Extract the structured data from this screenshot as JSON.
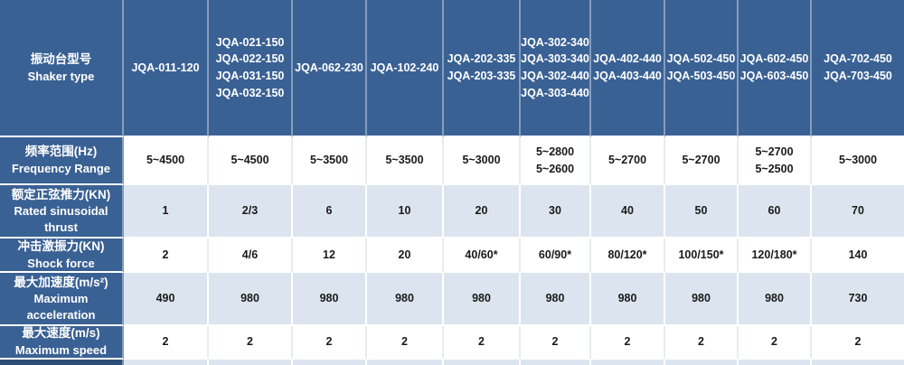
{
  "colors": {
    "header_blue": "#3a6194",
    "dark_blue_sliver": "#2e4e78",
    "light_row_blue": "#dce5ef",
    "white_row": "#ffffff",
    "header_text": "#ffffff",
    "data_text": "#1a1a1a"
  },
  "table": {
    "header_row": {
      "label_zh": "振动台型号",
      "label_en": "Shaker type",
      "columns": [
        {
          "models": [
            "JQA-011-120"
          ]
        },
        {
          "models": [
            "JQA-021-150",
            "JQA-022-150",
            "JQA-031-150",
            "JQA-032-150"
          ]
        },
        {
          "models": [
            "JQA-062-230"
          ]
        },
        {
          "models": [
            "JQA-102-240"
          ]
        },
        {
          "models": [
            "JQA-202-335",
            "JQA-203-335"
          ]
        },
        {
          "models": [
            "JQA-302-340",
            "JQA-303-340",
            "JQA-302-440",
            "JQA-303-440"
          ]
        },
        {
          "models": [
            "JQA-402-440",
            "JQA-403-440"
          ]
        },
        {
          "models": [
            "JQA-502-450",
            "JQA-503-450"
          ]
        },
        {
          "models": [
            "JQA-602-450",
            "JQA-603-450"
          ]
        },
        {
          "models": [
            "JQA-702-450",
            "JQA-703-450"
          ]
        }
      ]
    },
    "rows": [
      {
        "label_zh": "频率范围(Hz)",
        "label_en": "Frequency Range",
        "values": [
          "5~4500",
          "5~4500",
          "5~3500",
          "5~3500",
          "5~3000",
          "5~2800\n5~2600",
          "5~2700",
          "5~2700",
          "5~2700\n5~2500",
          "5~3000"
        ]
      },
      {
        "label_zh": "额定正弦推力(KN)",
        "label_en": "Rated sinusoidal thrust",
        "values": [
          "1",
          "2/3",
          "6",
          "10",
          "20",
          "30",
          "40",
          "50",
          "60",
          "70"
        ]
      },
      {
        "label_zh": "冲击激振力(KN)",
        "label_en": "Shock force",
        "values": [
          "2",
          "4/6",
          "12",
          "20",
          "40/60*",
          "60/90*",
          "80/120*",
          "100/150*",
          "120/180*",
          "140"
        ]
      },
      {
        "label_zh": "最大加速度(m/s²)",
        "label_en": "Maximum acceleration",
        "values": [
          "490",
          "980",
          "980",
          "980",
          "980",
          "980",
          "980",
          "980",
          "980",
          "730"
        ]
      },
      {
        "label_zh": "最大速度(m/s)",
        "label_en": "Maximum speed",
        "values": [
          "2",
          "2",
          "2",
          "2",
          "2",
          "2",
          "2",
          "2",
          "2",
          "2"
        ]
      }
    ]
  }
}
